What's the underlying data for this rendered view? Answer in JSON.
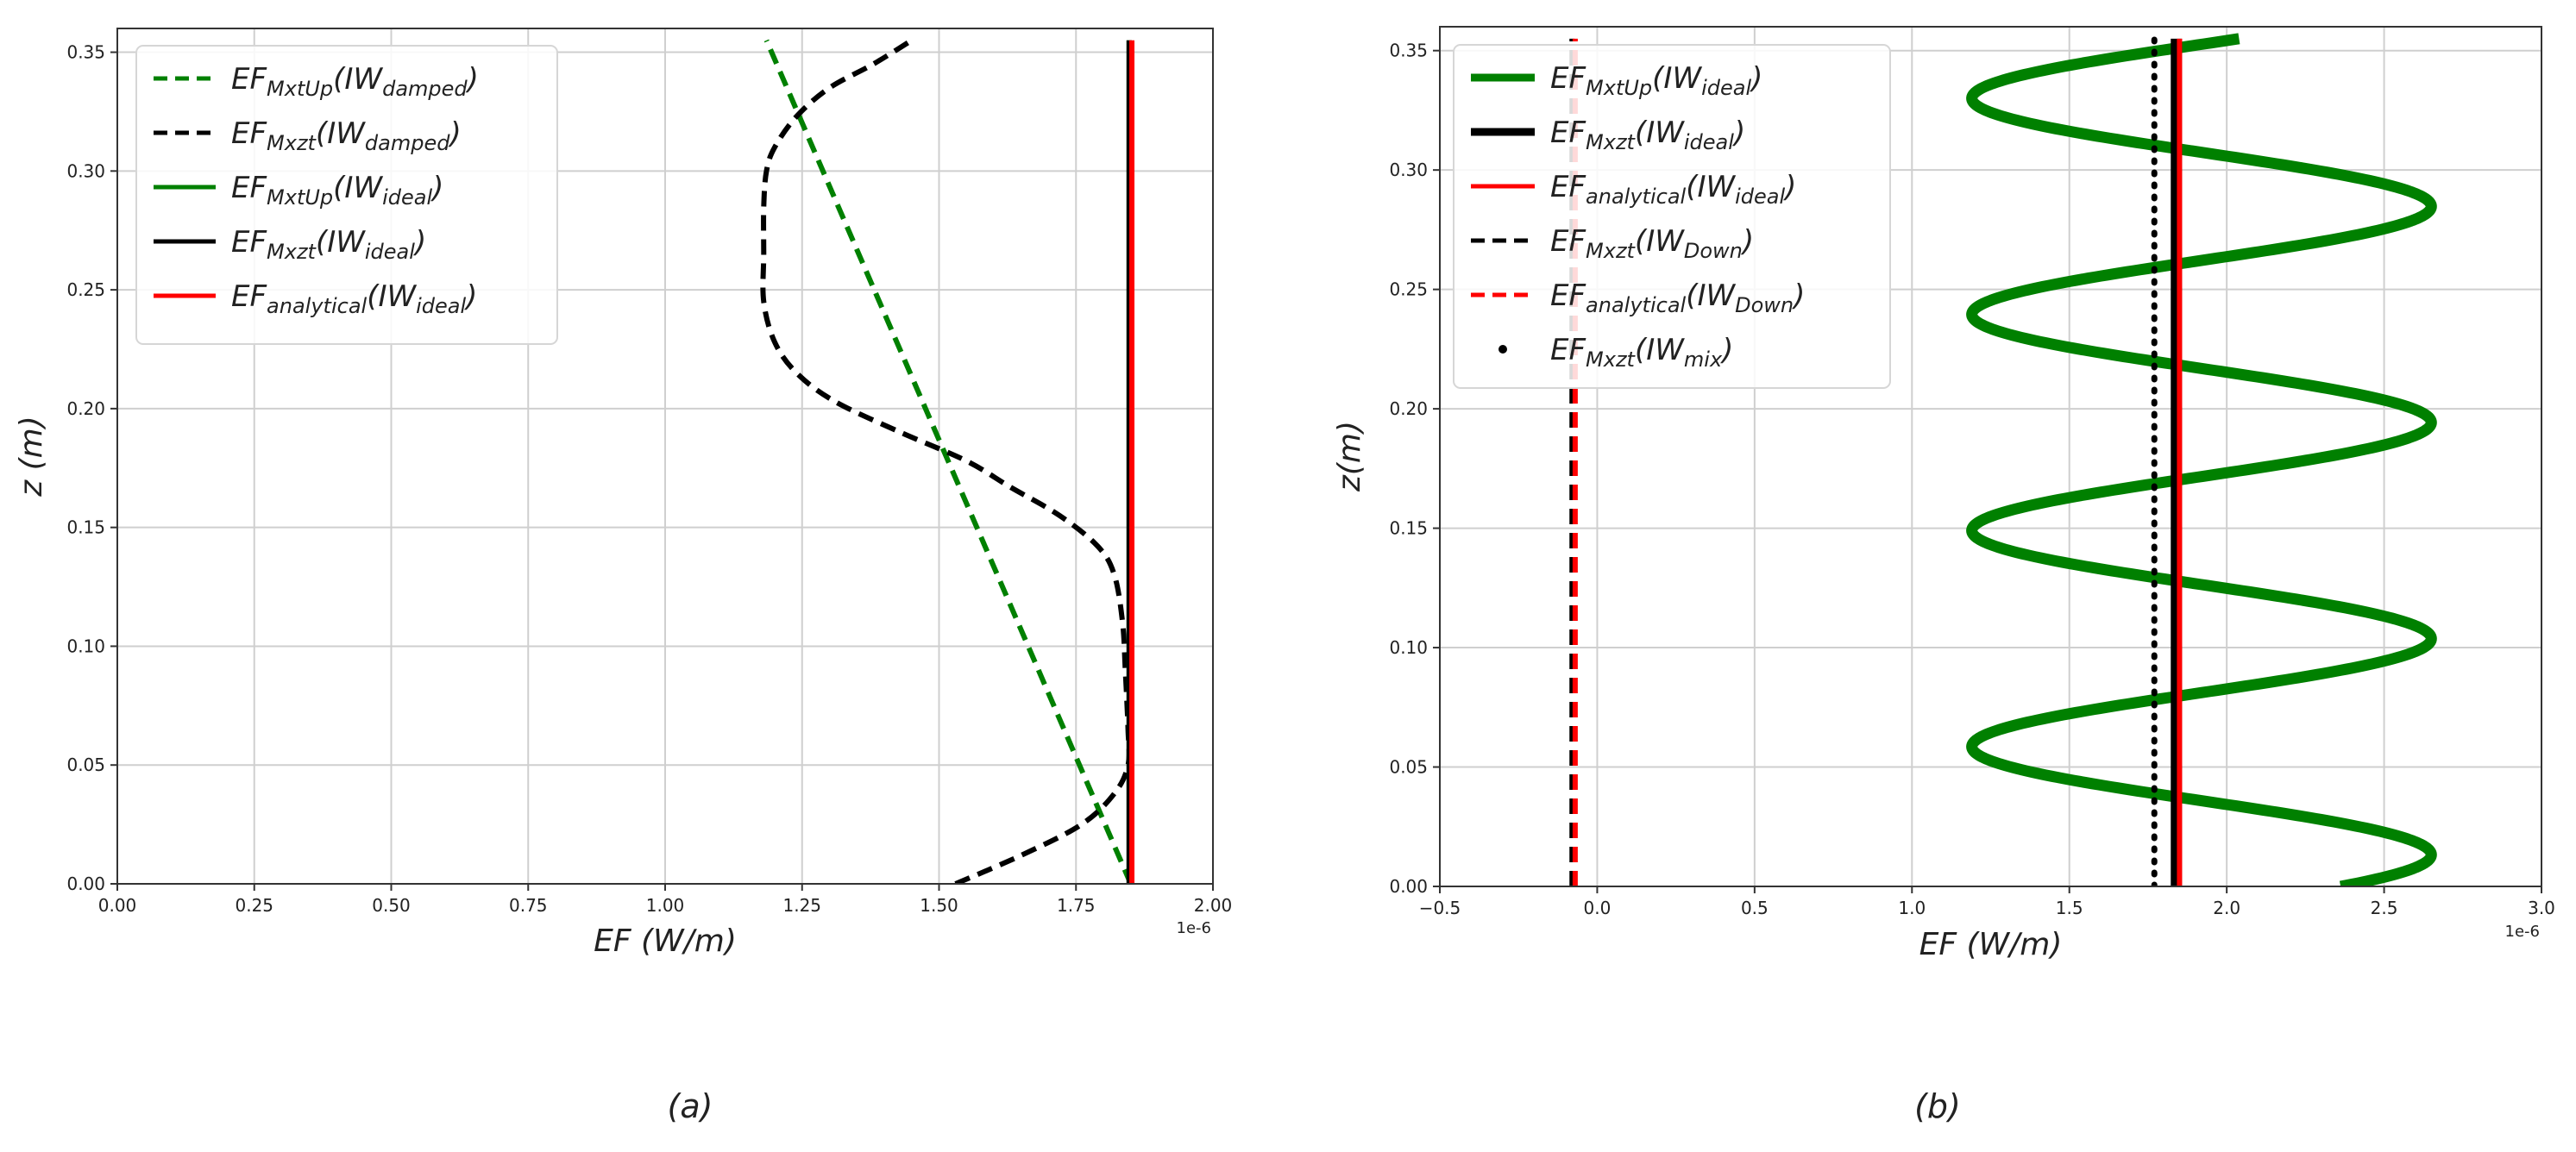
{
  "figure": {
    "captions": [
      "(a)",
      "(b)"
    ]
  },
  "chart_data": [
    {
      "type": "line",
      "panel": "a",
      "xlabel": "EF (W/m)",
      "ylabel": "z (m)",
      "x_offset_label": "1e-6",
      "xlim": [
        0.0,
        2.0
      ],
      "ylim": [
        0.0,
        0.36
      ],
      "xticks": [
        "0.00",
        "0.25",
        "0.50",
        "0.75",
        "1.00",
        "1.25",
        "1.50",
        "1.75",
        "2.00"
      ],
      "yticks": [
        "0.00",
        "0.05",
        "0.10",
        "0.15",
        "0.20",
        "0.25",
        "0.30",
        "0.35"
      ],
      "grid": true,
      "legend_position": "top-left",
      "series": [
        {
          "name": "EF_MxtUp(IW_damped)",
          "legend": {
            "main": "EF",
            "sub": "MxtUp",
            "paren": "IW",
            "psub": "damped"
          },
          "color": "#008000",
          "style": "dashed",
          "points": [
            [
              1.85,
              0.0
            ],
            [
              1.185,
              0.355
            ]
          ]
        },
        {
          "name": "EF_Mxzt(IW_damped)",
          "legend": {
            "main": "EF",
            "sub": "Mxzt",
            "paren": "IW",
            "psub": "damped"
          },
          "color": "#000000",
          "style": "dashed",
          "points": [
            [
              1.53,
              0.0
            ],
            [
              1.65,
              0.012
            ],
            [
              1.76,
              0.025
            ],
            [
              1.82,
              0.038
            ],
            [
              1.845,
              0.05
            ],
            [
              1.845,
              0.065
            ],
            [
              1.84,
              0.09
            ],
            [
              1.835,
              0.11
            ],
            [
              1.82,
              0.13
            ],
            [
              1.79,
              0.142
            ],
            [
              1.72,
              0.155
            ],
            [
              1.63,
              0.167
            ],
            [
              1.55,
              0.178
            ],
            [
              1.43,
              0.19
            ],
            [
              1.31,
              0.203
            ],
            [
              1.24,
              0.215
            ],
            [
              1.2,
              0.228
            ],
            [
              1.18,
              0.245
            ],
            [
              1.18,
              0.265
            ],
            [
              1.18,
              0.285
            ],
            [
              1.185,
              0.3
            ],
            [
              1.2,
              0.31
            ],
            [
              1.24,
              0.323
            ],
            [
              1.3,
              0.335
            ],
            [
              1.38,
              0.345
            ],
            [
              1.45,
              0.355
            ]
          ]
        },
        {
          "name": "EF_MxtUp(IW_ideal)",
          "legend": {
            "main": "EF",
            "sub": "MxtUp",
            "paren": "IW",
            "psub": "ideal"
          },
          "color": "#008000",
          "style": "solid",
          "points": [
            [
              1.847,
              0.0
            ],
            [
              1.847,
              0.355
            ]
          ]
        },
        {
          "name": "EF_Mxzt(IW_ideal)",
          "legend": {
            "main": "EF",
            "sub": "Mxzt",
            "paren": "IW",
            "psub": "ideal"
          },
          "color": "#000000",
          "style": "solid",
          "points": [
            [
              1.847,
              0.0
            ],
            [
              1.847,
              0.355
            ]
          ]
        },
        {
          "name": "EF_analytical(IW_ideal)",
          "legend": {
            "main": "EF",
            "sub": "analytical",
            "paren": "IW",
            "psub": "ideal"
          },
          "color": "#ff0000",
          "style": "solid",
          "points": [
            [
              1.852,
              0.0
            ],
            [
              1.852,
              0.355
            ]
          ]
        }
      ]
    },
    {
      "type": "line",
      "panel": "b",
      "xlabel": "EF (W/m)",
      "ylabel": "z(m)",
      "x_offset_label": "1e-6",
      "xlim": [
        -0.5,
        3.0
      ],
      "ylim": [
        0.0,
        0.36
      ],
      "xticks": [
        "−0.5",
        "0.0",
        "0.5",
        "1.0",
        "1.5",
        "2.0",
        "2.5",
        "3.0"
      ],
      "yticks": [
        "0.00",
        "0.05",
        "0.10",
        "0.15",
        "0.20",
        "0.25",
        "0.30",
        "0.35"
      ],
      "grid": true,
      "legend_position": "top-left",
      "series": [
        {
          "name": "EF_MxtUp(IW_ideal)",
          "legend": {
            "main": "EF",
            "sub": "MxtUp",
            "paren": "IW",
            "psub": "ideal"
          },
          "color": "#008000",
          "style": "thick",
          "sinusoid": {
            "center": 1.92,
            "amplitude": 0.73,
            "wavelength": 0.0905,
            "phase_at_zero": 0.65,
            "z_range": [
              0.0,
              0.355
            ]
          }
        },
        {
          "name": "EF_Mxzt(IW_ideal)",
          "legend": {
            "main": "EF",
            "sub": "Mxzt",
            "paren": "IW",
            "psub": "ideal"
          },
          "color": "#000000",
          "style": "thick",
          "points": [
            [
              1.84,
              0.0
            ],
            [
              1.84,
              0.355
            ]
          ]
        },
        {
          "name": "EF_analytical(IW_ideal)",
          "legend": {
            "main": "EF",
            "sub": "analytical",
            "paren": "IW",
            "psub": "ideal"
          },
          "color": "#ff0000",
          "style": "solid",
          "points": [
            [
              1.85,
              0.0
            ],
            [
              1.85,
              0.355
            ]
          ]
        },
        {
          "name": "EF_Mxzt(IW_Down)",
          "legend": {
            "main": "EF",
            "sub": "Mxzt",
            "paren": "IW",
            "psub": "Down"
          },
          "color": "#000000",
          "style": "dashed",
          "points": [
            [
              -0.08,
              0.0
            ],
            [
              -0.08,
              0.355
            ]
          ]
        },
        {
          "name": "EF_analytical(IW_Down)",
          "legend": {
            "main": "EF",
            "sub": "analytical",
            "paren": "IW",
            "psub": "Down"
          },
          "color": "#ff0000",
          "style": "dashed",
          "points": [
            [
              -0.07,
              0.0
            ],
            [
              -0.07,
              0.355
            ]
          ]
        },
        {
          "name": "EF_Mxzt(IW_mix)",
          "legend": {
            "main": "EF",
            "sub": "Mxzt",
            "paren": "IW",
            "psub": "mix"
          },
          "color": "#000000",
          "style": "dotted",
          "points": [
            [
              1.77,
              0.0
            ],
            [
              1.77,
              0.355
            ]
          ]
        }
      ]
    }
  ]
}
